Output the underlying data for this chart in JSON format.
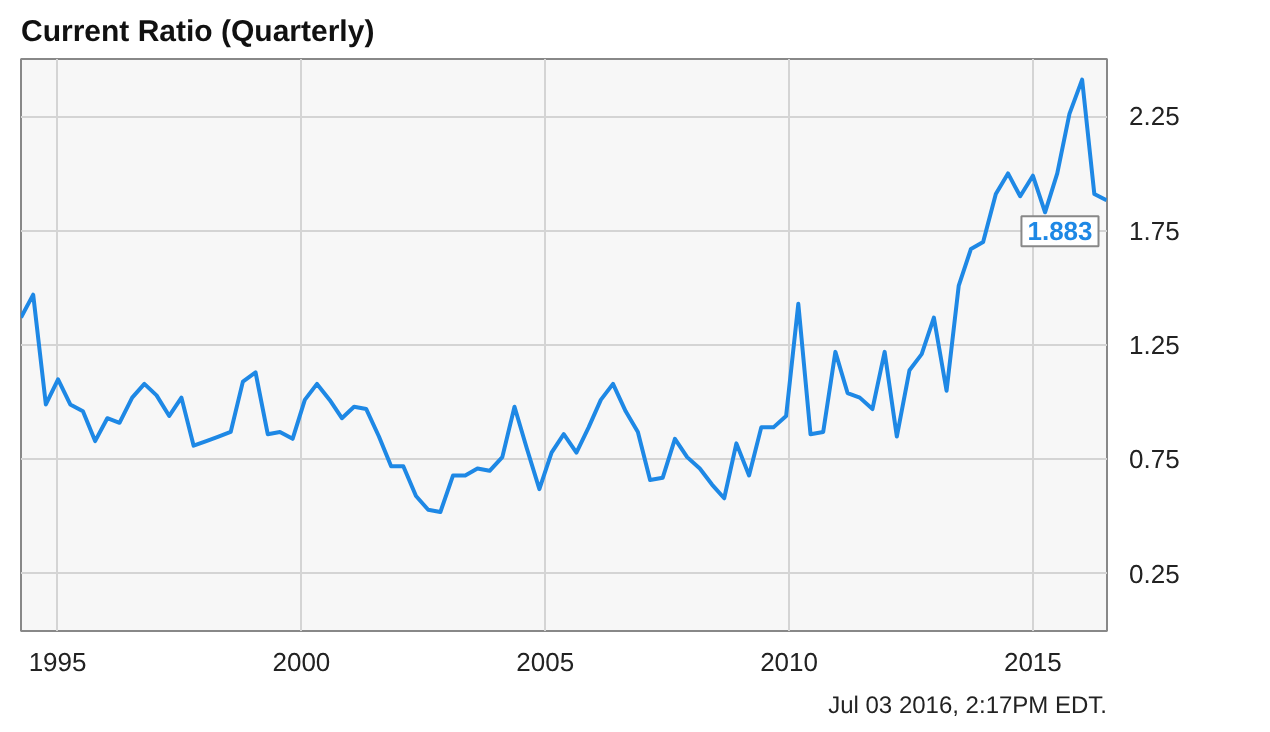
{
  "chart_data": {
    "type": "line",
    "title": "Current Ratio (Quarterly)",
    "x": [
      1994.25,
      1994.5,
      1994.76,
      1995.01,
      1995.26,
      1995.52,
      1995.77,
      1996.02,
      1996.27,
      1996.53,
      1996.78,
      1997.03,
      1997.29,
      1997.54,
      1997.79,
      1998.05,
      1998.3,
      1998.55,
      1998.8,
      1999.06,
      1999.31,
      1999.56,
      1999.82,
      2000.07,
      2000.32,
      2000.58,
      2000.83,
      2001.08,
      2001.33,
      2001.59,
      2001.84,
      2002.09,
      2002.35,
      2002.6,
      2002.85,
      2003.11,
      2003.36,
      2003.61,
      2003.86,
      2004.12,
      2004.37,
      2004.62,
      2004.88,
      2005.13,
      2005.38,
      2005.64,
      2005.89,
      2006.14,
      2006.39,
      2006.65,
      2006.9,
      2007.15,
      2007.41,
      2007.66,
      2007.91,
      2008.17,
      2008.42,
      2008.67,
      2008.92,
      2009.18,
      2009.43,
      2009.68,
      2009.94,
      2010.19,
      2010.44,
      2010.7,
      2010.95,
      2011.2,
      2011.45,
      2011.71,
      2011.96,
      2012.21,
      2012.47,
      2012.72,
      2012.97,
      2013.23,
      2013.48,
      2013.73,
      2013.98,
      2014.24,
      2014.49,
      2014.74,
      2015.0,
      2015.25,
      2015.5,
      2015.75,
      2016.01,
      2016.26,
      2016.51
    ],
    "series": [
      {
        "color": "#1e88e5",
        "values": [
          1.37,
          1.47,
          0.99,
          1.1,
          0.99,
          0.96,
          0.83,
          0.93,
          0.91,
          1.02,
          1.08,
          1.03,
          0.94,
          1.02,
          0.81,
          0.83,
          0.85,
          0.87,
          1.09,
          1.13,
          0.86,
          0.87,
          0.84,
          1.01,
          1.08,
          1.01,
          0.93,
          0.98,
          0.97,
          0.85,
          0.72,
          0.72,
          0.59,
          0.53,
          0.52,
          0.68,
          0.68,
          0.71,
          0.7,
          0.76,
          0.98,
          0.8,
          0.62,
          0.78,
          0.86,
          0.78,
          0.89,
          1.01,
          1.08,
          0.96,
          0.87,
          0.66,
          0.67,
          0.84,
          0.76,
          0.71,
          0.64,
          0.58,
          0.82,
          0.68,
          0.89,
          0.89,
          0.94,
          1.43,
          0.86,
          0.87,
          1.22,
          1.04,
          1.02,
          0.97,
          1.22,
          0.85,
          1.14,
          1.21,
          1.37,
          1.05,
          1.51,
          1.67,
          1.7,
          1.91,
          2.0,
          1.9,
          1.99,
          1.83,
          2.0,
          2.26,
          2.41,
          1.91,
          1.883
        ]
      }
    ],
    "xlim": [
      1994.25,
      2016.52
    ],
    "ylim": [
      0,
      2.5
    ],
    "xticks": [
      1995,
      2000,
      2005,
      2010,
      2015
    ],
    "yticks": [
      0.25,
      0.75,
      1.25,
      1.75,
      2.25
    ],
    "grid": true,
    "annotations": [
      {
        "text": "1.883",
        "x": 2016.51,
        "y": 1.883
      },
      "Jul 03 2016, 2:17PM EDT."
    ]
  }
}
